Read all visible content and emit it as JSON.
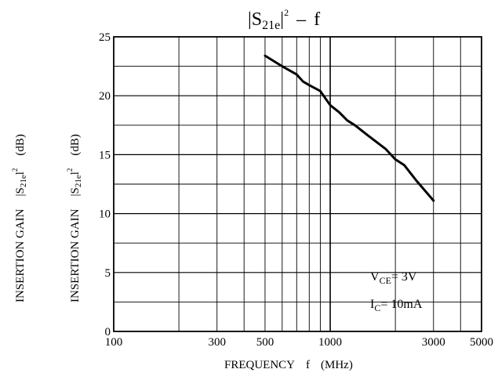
{
  "chart_data": {
    "type": "line",
    "title": {
      "prefix": "|S",
      "sub": "21e",
      "suffix": "|",
      "sup": "2",
      "dash": "–",
      "var": "f"
    },
    "xlabel": {
      "word": "FREQUENCY",
      "var": "f",
      "unit": "(MHz)"
    },
    "ylabel": {
      "word": "INSERTION GAIN",
      "prefix": "|S",
      "sub": "21e",
      "suffix": "l",
      "sup": "2",
      "unit": "(dB)"
    },
    "x_scale": "log",
    "xlim": [
      100,
      5000
    ],
    "ylim": [
      0,
      25
    ],
    "x_ticks": [
      100,
      300,
      500,
      1000,
      3000,
      5000
    ],
    "x_tick_labels": [
      "100",
      "300",
      "500",
      "1000",
      "3000",
      "5000"
    ],
    "y_ticks": [
      0,
      5,
      10,
      15,
      20,
      25
    ],
    "y_tick_labels": [
      "0",
      "5",
      "10",
      "15",
      "20",
      "25"
    ],
    "grid": true,
    "conditions": [
      {
        "prefix": "V",
        "sub": "CE",
        "value": "= 3V"
      },
      {
        "prefix": "I",
        "sub": "C",
        "value": "= 10mA"
      }
    ],
    "series": [
      {
        "x": [
          500,
          600,
          700,
          750,
          800,
          900,
          1000,
          1100,
          1200,
          1300,
          1500,
          1800,
          2000,
          2200,
          2500,
          3000
        ],
        "y": [
          23.4,
          22.5,
          21.8,
          21.2,
          20.9,
          20.4,
          19.2,
          18.6,
          17.9,
          17.5,
          16.6,
          15.5,
          14.6,
          14.1,
          12.8,
          11.1
        ]
      }
    ]
  }
}
